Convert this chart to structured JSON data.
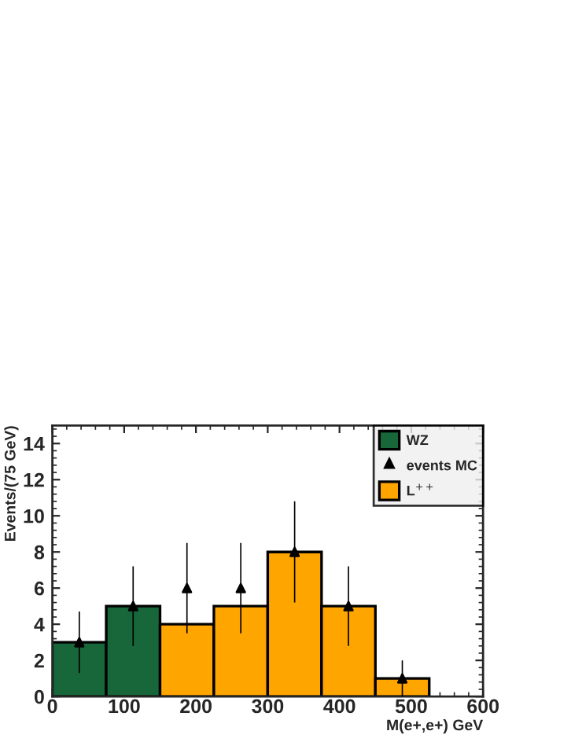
{
  "chart_data": {
    "type": "histogram",
    "xlabel": "M(e+,e+) GeV",
    "ylabel": "Events/(75 GeV)",
    "bins": [
      0,
      75,
      150,
      225,
      300,
      375,
      450,
      525,
      600
    ],
    "series": [
      {
        "name": "WZ",
        "color": "#17673a",
        "values": [
          3,
          5,
          0,
          0,
          0,
          0,
          0,
          0
        ]
      },
      {
        "name": "L$^{++}$",
        "color": "#ffa500",
        "values": [
          0,
          0,
          4,
          5,
          8,
          5,
          1,
          0
        ]
      },
      {
        "name": "events MC",
        "type": "scatter",
        "color": "#000000",
        "marker": "triangle",
        "x": [
          37.5,
          112.5,
          187.5,
          262.5,
          337.5,
          412.5,
          487.5
        ],
        "values": [
          3,
          5,
          6,
          6,
          8,
          5,
          1
        ],
        "errors": [
          1.7,
          2.2,
          2.5,
          2.5,
          2.8,
          2.2,
          1.0
        ]
      }
    ],
    "xlim": [
      0,
      600
    ],
    "xticks": [
      0,
      100,
      200,
      300,
      400,
      500,
      600
    ],
    "ylim": [
      0,
      15
    ],
    "yticks": [
      0,
      2,
      4,
      6,
      8,
      10,
      12,
      14
    ],
    "legend": "top right",
    "grid": false
  }
}
